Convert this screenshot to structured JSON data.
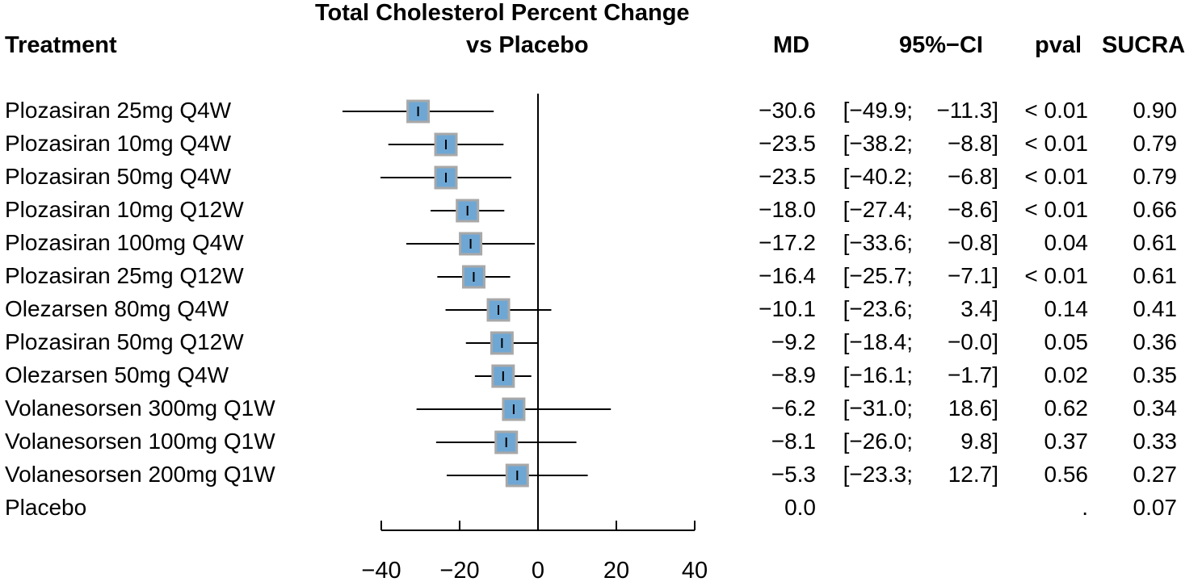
{
  "chart_data": {
    "type": "forest",
    "title_line1": "Total Cholesterol Percent Change",
    "title_line2": "vs Placebo",
    "columns": {
      "treatment": "Treatment",
      "md": "MD",
      "ci": "95%−CI",
      "pval": "pval",
      "sucra": "SUCRA"
    },
    "xlim": [
      -40,
      40
    ],
    "xticks": [
      -40,
      -20,
      0,
      20,
      40
    ],
    "xtick_labels": [
      "−40",
      "−20",
      "0",
      "20",
      "40"
    ],
    "reference_line": 0,
    "marker_color": "#6fa7d4",
    "marker_border": "#a8a8a8",
    "rows": [
      {
        "treatment": "Plozasiran 25mg Q4W",
        "md": -30.6,
        "lower": -49.9,
        "upper": -11.3,
        "md_text": "−30.6",
        "ci_lo_text": "[−49.9;",
        "ci_hi_text": "−11.3]",
        "pval_text": "< 0.01",
        "sucra_text": "0.90",
        "weight": 1.0
      },
      {
        "treatment": "Plozasiran 10mg Q4W",
        "md": -23.5,
        "lower": -38.2,
        "upper": -8.8,
        "md_text": "−23.5",
        "ci_lo_text": "[−38.2;",
        "ci_hi_text": "−8.8]",
        "pval_text": "< 0.01",
        "sucra_text": "0.79",
        "weight": 1.0
      },
      {
        "treatment": "Plozasiran 50mg Q4W",
        "md": -23.5,
        "lower": -40.2,
        "upper": -6.8,
        "md_text": "−23.5",
        "ci_lo_text": "[−40.2;",
        "ci_hi_text": "−6.8]",
        "pval_text": "< 0.01",
        "sucra_text": "0.79",
        "weight": 1.0
      },
      {
        "treatment": "Plozasiran 10mg Q12W",
        "md": -18.0,
        "lower": -27.4,
        "upper": -8.6,
        "md_text": "−18.0",
        "ci_lo_text": "[−27.4;",
        "ci_hi_text": "−8.6]",
        "pval_text": "< 0.01",
        "sucra_text": "0.66",
        "weight": 1.0
      },
      {
        "treatment": "Plozasiran 100mg Q4W",
        "md": -17.2,
        "lower": -33.6,
        "upper": -0.8,
        "md_text": "−17.2",
        "ci_lo_text": "[−33.6;",
        "ci_hi_text": "−0.8]",
        "pval_text": "0.04",
        "sucra_text": "0.61",
        "weight": 1.0
      },
      {
        "treatment": "Plozasiran 25mg Q12W",
        "md": -16.4,
        "lower": -25.7,
        "upper": -7.1,
        "md_text": "−16.4",
        "ci_lo_text": "[−25.7;",
        "ci_hi_text": "−7.1]",
        "pval_text": "< 0.01",
        "sucra_text": "0.61",
        "weight": 1.0
      },
      {
        "treatment": "Olezarsen 80mg Q4W",
        "md": -10.1,
        "lower": -23.6,
        "upper": 3.4,
        "md_text": "−10.1",
        "ci_lo_text": "[−23.6;",
        "ci_hi_text": "3.4]",
        "pval_text": "0.14",
        "sucra_text": "0.41",
        "weight": 1.0
      },
      {
        "treatment": "Plozasiran 50mg Q12W",
        "md": -9.2,
        "lower": -18.4,
        "upper": -0.0,
        "md_text": "−9.2",
        "ci_lo_text": "[−18.4;",
        "ci_hi_text": "−0.0]",
        "pval_text": "0.05",
        "sucra_text": "0.36",
        "weight": 1.0
      },
      {
        "treatment": "Olezarsen 50mg Q4W",
        "md": -8.9,
        "lower": -16.1,
        "upper": -1.7,
        "md_text": "−8.9",
        "ci_lo_text": "[−16.1;",
        "ci_hi_text": "−1.7]",
        "pval_text": "0.02",
        "sucra_text": "0.35",
        "weight": 1.0
      },
      {
        "treatment": "Volanesorsen 300mg Q1W",
        "md": -6.2,
        "lower": -31.0,
        "upper": 18.6,
        "md_text": "−6.2",
        "ci_lo_text": "[−31.0;",
        "ci_hi_text": "18.6]",
        "pval_text": "0.62",
        "sucra_text": "0.34",
        "weight": 1.0
      },
      {
        "treatment": "Volanesorsen 100mg Q1W",
        "md": -8.1,
        "lower": -26.0,
        "upper": 9.8,
        "md_text": "−8.1",
        "ci_lo_text": "[−26.0;",
        "ci_hi_text": "9.8]",
        "pval_text": "0.37",
        "sucra_text": "0.33",
        "weight": 1.0
      },
      {
        "treatment": "Volanesorsen 200mg Q1W",
        "md": -5.3,
        "lower": -23.3,
        "upper": 12.7,
        "md_text": "−5.3",
        "ci_lo_text": "[−23.3;",
        "ci_hi_text": "12.7]",
        "pval_text": "0.56",
        "sucra_text": "0.27",
        "weight": 1.0
      },
      {
        "treatment": "Placebo",
        "md": 0.0,
        "lower": null,
        "upper": null,
        "md_text": "0.0",
        "ci_lo_text": "",
        "ci_hi_text": "",
        "pval_text": ".",
        "sucra_text": "0.07",
        "weight": 0
      }
    ]
  }
}
